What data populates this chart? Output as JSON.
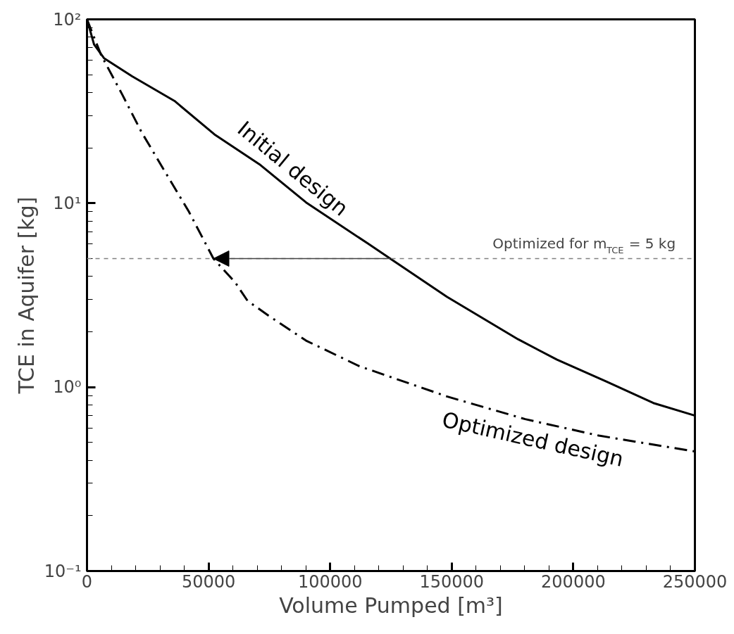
{
  "chart_data": {
    "type": "line",
    "xlabel": "Volume Pumped [m³]",
    "ylabel": "TCE in Aquifer [kg]",
    "log": "y",
    "xlim": [
      0,
      250000
    ],
    "ylim": [
      0.1,
      100
    ],
    "xticks": [
      0,
      50000,
      100000,
      150000,
      200000,
      250000
    ],
    "yticks": [
      {
        "value": 0.1,
        "label": "10⁻¹"
      },
      {
        "value": 1,
        "label": "10⁰"
      },
      {
        "value": 10,
        "label": "10¹"
      },
      {
        "value": 100,
        "label": "10²"
      }
    ],
    "grid": false,
    "legend": false,
    "marker": "none",
    "series": [
      {
        "name": "Initial design",
        "color": "#000000",
        "line_style": "solid",
        "x": [
          0,
          2900,
          7000,
          18600,
          36000,
          52400,
          70900,
          90100,
          115400,
          124700,
          148000,
          177300,
          193300,
          213700,
          232900,
          250000
        ],
        "values": [
          100,
          73,
          61.5,
          49,
          36,
          23.7,
          16.3,
          10.1,
          6.05,
          5,
          3.1,
          1.82,
          1.41,
          1.07,
          0.82,
          0.7
        ]
      },
      {
        "name": "Optimized design",
        "color": "#000000",
        "line_style": "dashdot",
        "x": [
          0,
          5800,
          14500,
          22400,
          32000,
          41900,
          52000,
          61000,
          66000,
          75600,
          90100,
          112000,
          148000,
          180200,
          210500,
          250000
        ],
        "values": [
          100,
          64,
          39,
          24.4,
          14.9,
          9,
          5,
          3.7,
          2.95,
          2.4,
          1.79,
          1.3,
          0.89,
          0.67,
          0.545,
          0.447
        ]
      }
    ],
    "ref_lines": [
      {
        "axis": "y",
        "value": 5,
        "label": "Optimized for m$_{TCE}$ = 5 kg",
        "color": "#808080",
        "line_style": "dashed"
      }
    ]
  }
}
